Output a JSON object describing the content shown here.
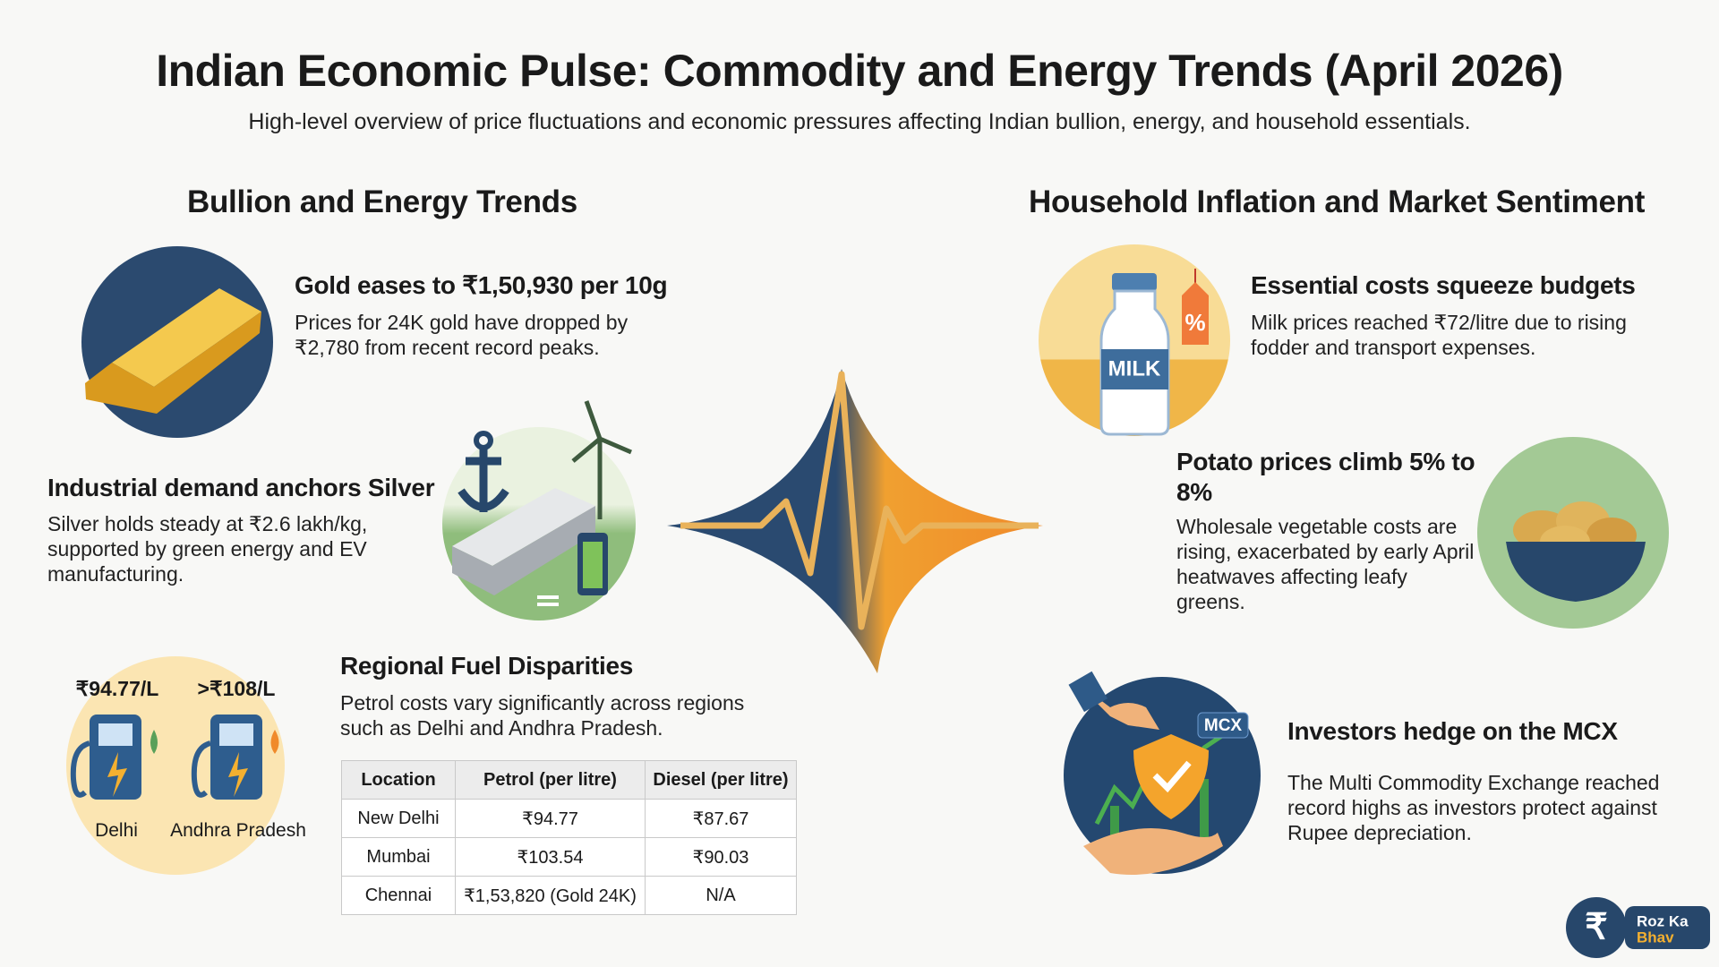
{
  "header": {
    "title": "Indian Economic Pulse: Commodity and Energy Trends (April 2026)",
    "subtitle": "High-level overview of price fluctuations and economic pressures affecting Indian bullion, energy, and household essentials."
  },
  "left": {
    "heading": "Bullion and Energy Trends",
    "items": [
      {
        "title": "Gold eases to ₹1,50,930 per 10g",
        "text": "Prices for 24K gold have dropped by ₹2,780 from recent record peaks."
      },
      {
        "title": "Industrial demand anchors Silver",
        "text": "Silver holds steady at ₹2.6 lakh/kg, supported by green energy and EV manufacturing."
      }
    ]
  },
  "fuel": {
    "title": "Regional Fuel Disparities",
    "text": "Petrol costs vary significantly across regions such as Delhi and Andhra Pradesh.",
    "gauges": [
      {
        "price": "₹94.77/L",
        "city": "Delhi"
      },
      {
        "price": ">₹108/L",
        "city": "Andhra Pradesh"
      }
    ],
    "table": {
      "headers": [
        "Location",
        "Petrol (per litre)",
        "Diesel (per litre)"
      ],
      "rows": [
        [
          "New Delhi",
          "₹94.77",
          "₹87.67"
        ],
        [
          "Mumbai",
          "₹103.54",
          "₹90.03"
        ],
        [
          "Chennai",
          "₹1,53,820 (Gold 24K)",
          "N/A"
        ]
      ]
    }
  },
  "right": {
    "heading": "Household Inflation and Market Sentiment",
    "items": [
      {
        "title": "Essential costs squeeze budgets",
        "text": "Milk prices reached ₹72/litre due to rising fodder and transport expenses."
      },
      {
        "title": "Potato prices climb 5% to 8%",
        "text": "Wholesale vegetable costs are rising, exacerbated by early April heatwaves affecting leafy greens."
      },
      {
        "title": "Investors hedge on the MCX",
        "text": "The Multi Commodity Exchange reached record highs as investors protect against Rupee depreciation."
      }
    ]
  },
  "icons": {
    "milk": "MILK",
    "tag": "%",
    "mcx": "MCX"
  },
  "logo": {
    "symbol": "₹",
    "line1": "Roz Ka",
    "line2": "Bhav"
  }
}
